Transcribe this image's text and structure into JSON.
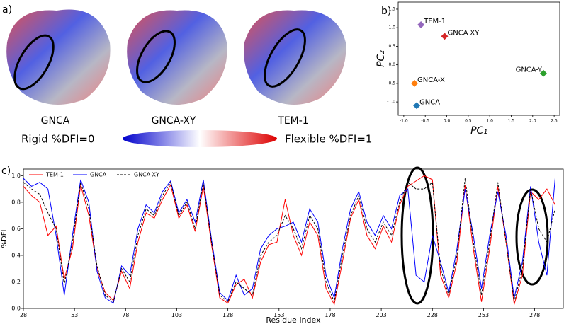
{
  "panel_labels": [
    "a)",
    "b)",
    "c)"
  ],
  "structures": [
    "GNCA",
    "GNCA-XY",
    "TEM-1"
  ],
  "colorbar": {
    "left": "Rigid %DFI=0",
    "right": "Flexible %DFI=1"
  },
  "chart_data": [
    {
      "type": "scatter",
      "xlabel": "PC₁",
      "ylabel": "PC₂",
      "xlim": [
        -1.13,
        2.63
      ],
      "ylim": [
        -1.36,
        1.69
      ],
      "xticks": [
        {
          "value": -1,
          "label": "-1.0"
        },
        -0.5,
        {
          "value": 0,
          "label": "0.0"
        },
        0.5,
        {
          "value": 1,
          "label": "1.0"
        },
        1.5,
        {
          "value": 2,
          "label": "2.0"
        },
        2.5
      ],
      "yticks": [
        {
          "value": -1,
          "label": "-1.0"
        },
        -0.5,
        {
          "value": 0,
          "label": "0.0"
        },
        0.5,
        {
          "value": 1,
          "label": "1.0"
        },
        1.5
      ],
      "points": [
        {
          "label": "TEM-1",
          "color": "#9467bd",
          "x": -0.6,
          "y": 1.08
        },
        {
          "label": "GNCA-XY",
          "color": "#d62728",
          "x": -0.05,
          "y": 0.77
        },
        {
          "label": "GNCA-Y",
          "color": "#2ca02c",
          "x": 2.25,
          "y": -0.23
        },
        {
          "label": "GNCA-X",
          "color": "#ff7f0e",
          "x": -0.75,
          "y": -0.5
        },
        {
          "label": "GNCA",
          "color": "#1f77b4",
          "x": -0.7,
          "y": -1.1
        }
      ]
    },
    {
      "type": "line",
      "xlabel": "Residue Index",
      "ylabel": "%DFI",
      "xlim": [
        28,
        292
      ],
      "ylim": [
        0,
        1.05
      ],
      "xticks": [
        28,
        53,
        78,
        103,
        128,
        153,
        178,
        203,
        228,
        253,
        278
      ],
      "yticks": [
        {
          "value": 0,
          "label": "0.0"
        },
        0.2,
        0.4,
        0.6,
        0.8,
        {
          "value": 1,
          "label": "1.0"
        }
      ],
      "x": [
        28,
        32,
        36,
        40,
        44,
        48,
        52,
        56,
        60,
        64,
        68,
        72,
        76,
        80,
        84,
        88,
        92,
        96,
        100,
        104,
        108,
        112,
        116,
        120,
        124,
        128,
        132,
        136,
        140,
        144,
        148,
        152,
        156,
        160,
        164,
        168,
        172,
        176,
        180,
        184,
        188,
        192,
        196,
        200,
        204,
        208,
        212,
        216,
        220,
        224,
        228,
        232,
        236,
        240,
        244,
        248,
        252,
        256,
        260,
        264,
        268,
        272,
        276,
        280,
        284,
        288
      ],
      "series": [
        {
          "name": "TEM-1",
          "color": "red",
          "dash": false,
          "values": [
            0.92,
            0.85,
            0.8,
            0.55,
            0.62,
            0.22,
            0.45,
            0.93,
            0.7,
            0.3,
            0.12,
            0.06,
            0.28,
            0.15,
            0.5,
            0.72,
            0.68,
            0.82,
            0.93,
            0.68,
            0.78,
            0.58,
            0.92,
            0.48,
            0.08,
            0.04,
            0.18,
            0.22,
            0.08,
            0.35,
            0.48,
            0.5,
            0.82,
            0.55,
            0.4,
            0.65,
            0.55,
            0.15,
            0.03,
            0.35,
            0.68,
            0.82,
            0.55,
            0.45,
            0.62,
            0.5,
            0.78,
            0.92,
            0.96,
            1.0,
            0.97,
            0.25,
            0.08,
            0.35,
            0.93,
            0.45,
            0.05,
            0.45,
            0.92,
            0.5,
            0.03,
            0.25,
            0.88,
            0.82,
            0.9,
            0.78
          ]
        },
        {
          "name": "GNCA",
          "color": "blue",
          "dash": false,
          "values": [
            0.98,
            0.92,
            0.95,
            0.9,
            0.55,
            0.1,
            0.55,
            0.97,
            0.8,
            0.28,
            0.08,
            0.04,
            0.32,
            0.25,
            0.6,
            0.78,
            0.72,
            0.88,
            0.96,
            0.72,
            0.82,
            0.65,
            0.97,
            0.52,
            0.12,
            0.06,
            0.25,
            0.1,
            0.15,
            0.45,
            0.55,
            0.6,
            0.62,
            0.65,
            0.5,
            0.75,
            0.65,
            0.25,
            0.08,
            0.45,
            0.75,
            0.88,
            0.65,
            0.55,
            0.7,
            0.6,
            0.85,
            0.9,
            0.25,
            0.2,
            0.55,
            0.35,
            0.12,
            0.45,
            0.9,
            0.55,
            0.15,
            0.55,
            0.88,
            0.55,
            0.08,
            0.35,
            0.92,
            0.5,
            0.25,
            0.98
          ]
        },
        {
          "name": "GNCA-XY",
          "color": "black",
          "dash": true,
          "values": [
            0.95,
            0.9,
            0.86,
            0.72,
            0.6,
            0.18,
            0.5,
            0.95,
            0.75,
            0.32,
            0.1,
            0.05,
            0.3,
            0.2,
            0.55,
            0.75,
            0.7,
            0.85,
            0.95,
            0.7,
            0.8,
            0.6,
            0.95,
            0.5,
            0.1,
            0.05,
            0.2,
            0.15,
            0.1,
            0.4,
            0.5,
            0.55,
            0.7,
            0.6,
            0.45,
            0.7,
            0.6,
            0.2,
            0.05,
            0.4,
            0.7,
            0.85,
            0.6,
            0.5,
            0.65,
            0.55,
            0.8,
            0.95,
            0.9,
            0.9,
            0.95,
            0.3,
            0.1,
            0.4,
            0.98,
            0.5,
            0.1,
            0.5,
            0.95,
            0.5,
            0.05,
            0.3,
            0.9,
            0.6,
            0.5,
            0.75
          ]
        }
      ]
    }
  ]
}
